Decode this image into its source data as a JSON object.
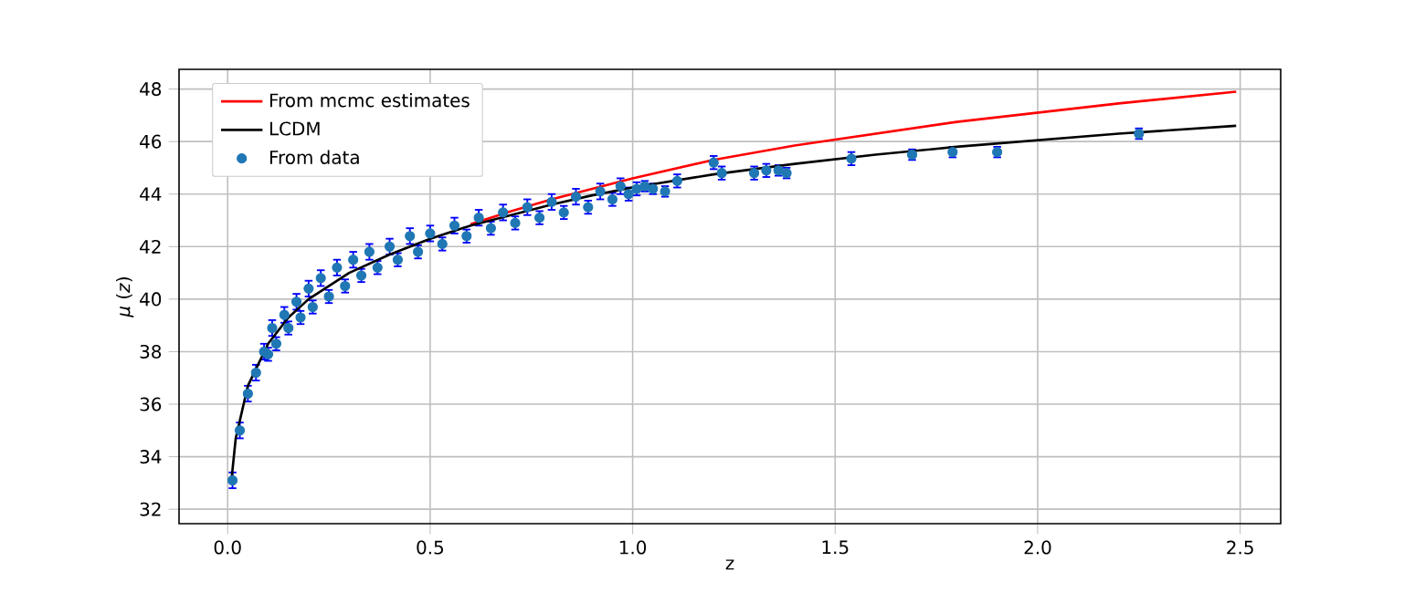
{
  "chart_data": {
    "type": "scatter",
    "xlabel": "z",
    "ylabel": "*μ* (*z*)",
    "xlim": [
      -0.12,
      2.6
    ],
    "ylim": [
      31.45,
      48.75
    ],
    "xticks": [
      {
        "value": 0,
        "label": "0.0"
      },
      0.5,
      {
        "value": 1,
        "label": "1.0"
      },
      1.5,
      {
        "value": 2,
        "label": "2.0"
      },
      2.5
    ],
    "yticks": [
      32,
      34,
      36,
      38,
      40,
      42,
      44,
      46,
      48
    ],
    "grid": true,
    "legend": "top left",
    "series": [
      {
        "name": "From mcmc estimates",
        "type": "line",
        "marker": "none",
        "color": "#ff0000",
        "x": [
          0.6,
          0.7,
          0.8,
          0.9,
          1.0,
          1.2,
          1.4,
          1.6,
          1.8,
          2.0,
          2.2,
          2.49
        ],
        "values": [
          42.85,
          43.35,
          43.8,
          44.2,
          44.6,
          45.3,
          45.85,
          46.3,
          46.75,
          47.1,
          47.45,
          47.9
        ]
      },
      {
        "name": "LCDM",
        "type": "line",
        "marker": "none",
        "color": "#000000",
        "x": [
          0.01,
          0.02,
          0.05,
          0.1,
          0.15,
          0.2,
          0.3,
          0.4,
          0.5,
          0.6,
          0.7,
          0.8,
          0.9,
          1.0,
          1.2,
          1.4,
          1.6,
          1.8,
          2.0,
          2.2,
          2.49
        ],
        "values": [
          33.2,
          34.7,
          36.7,
          38.3,
          39.3,
          40.0,
          41.0,
          41.7,
          42.3,
          42.8,
          43.2,
          43.6,
          43.95,
          44.25,
          44.75,
          45.15,
          45.5,
          45.8,
          46.05,
          46.3,
          46.6
        ]
      },
      {
        "name": "From data",
        "marker": "circle",
        "color": "#1f77b4",
        "x": [
          0.012,
          0.03,
          0.05,
          0.07,
          0.09,
          0.1,
          0.11,
          0.12,
          0.14,
          0.15,
          0.17,
          0.18,
          0.2,
          0.21,
          0.23,
          0.25,
          0.27,
          0.29,
          0.31,
          0.33,
          0.35,
          0.37,
          0.4,
          0.42,
          0.45,
          0.47,
          0.5,
          0.53,
          0.56,
          0.59,
          0.62,
          0.65,
          0.68,
          0.71,
          0.74,
          0.77,
          0.8,
          0.83,
          0.86,
          0.89,
          0.92,
          0.95,
          0.97,
          0.99,
          1.01,
          1.03,
          1.05,
          1.08,
          1.11,
          1.2,
          1.22,
          1.3,
          1.33,
          1.36,
          1.38,
          1.54,
          1.69,
          1.79,
          1.9,
          2.25
        ],
        "values": [
          33.1,
          35.0,
          36.4,
          37.2,
          38.0,
          37.9,
          38.9,
          38.3,
          39.4,
          38.9,
          39.9,
          39.3,
          40.4,
          39.7,
          40.8,
          40.1,
          41.2,
          40.5,
          41.5,
          40.9,
          41.8,
          41.2,
          42.0,
          41.5,
          42.4,
          41.8,
          42.5,
          42.1,
          42.8,
          42.4,
          43.1,
          42.7,
          43.3,
          42.9,
          43.5,
          43.1,
          43.7,
          43.3,
          43.9,
          43.5,
          44.1,
          43.8,
          44.3,
          44.0,
          44.2,
          44.3,
          44.2,
          44.1,
          44.5,
          45.2,
          44.8,
          44.8,
          44.9,
          44.9,
          44.8,
          45.35,
          45.5,
          45.6,
          45.6,
          46.3
        ],
        "errors": [
          0.3,
          0.3,
          0.3,
          0.3,
          0.3,
          0.25,
          0.3,
          0.25,
          0.3,
          0.25,
          0.3,
          0.25,
          0.3,
          0.25,
          0.3,
          0.25,
          0.3,
          0.25,
          0.3,
          0.25,
          0.3,
          0.25,
          0.3,
          0.25,
          0.3,
          0.25,
          0.3,
          0.25,
          0.3,
          0.25,
          0.3,
          0.25,
          0.3,
          0.25,
          0.3,
          0.25,
          0.3,
          0.25,
          0.3,
          0.25,
          0.3,
          0.25,
          0.3,
          0.25,
          0.25,
          0.2,
          0.2,
          0.2,
          0.25,
          0.25,
          0.25,
          0.25,
          0.25,
          0.2,
          0.2,
          0.25,
          0.2,
          0.2,
          0.2,
          0.2
        ]
      }
    ]
  }
}
